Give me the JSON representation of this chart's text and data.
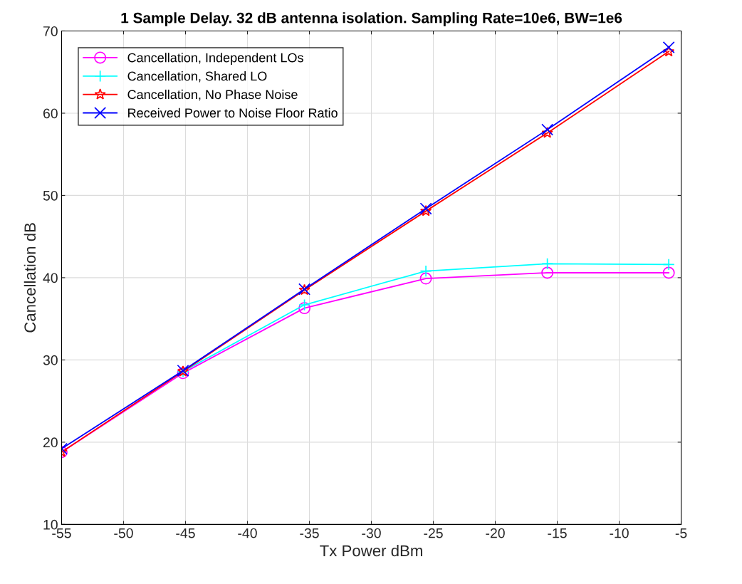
{
  "chart_data": {
    "type": "line",
    "title": "1 Sample Delay. 32 dB antenna isolation. Sampling Rate=10e6, BW=1e6",
    "xlabel": "Tx Power dBm",
    "ylabel": "Cancellation dB",
    "x": [
      -55,
      -45.2,
      -35.4,
      -25.6,
      -15.8,
      -6
    ],
    "series": [
      {
        "name": "Cancellation, Independent LOs",
        "color": "#ff00ff",
        "marker": "circle",
        "values": [
          18.8,
          28.4,
          36.3,
          39.9,
          40.6,
          40.6
        ]
      },
      {
        "name": "Cancellation, Shared LO",
        "color": "#00ffff",
        "marker": "plus",
        "values": [
          null,
          28.6,
          36.7,
          40.8,
          41.7,
          41.6
        ]
      },
      {
        "name": "Cancellation, No Phase Noise",
        "color": "#ff0000",
        "marker": "star",
        "values": [
          18.8,
          28.6,
          38.5,
          48.1,
          57.6,
          67.5
        ]
      },
      {
        "name": "Received Power to Noise Floor Ratio",
        "color": "#0000ff",
        "marker": "cross",
        "values": [
          19.2,
          28.7,
          38.6,
          48.4,
          58.0,
          68.0
        ]
      }
    ],
    "xlim": [
      -55,
      -5
    ],
    "xticks": [
      -55,
      -50,
      -45,
      -40,
      -35,
      -30,
      -25,
      -20,
      -15,
      -10,
      -5
    ],
    "ylim": [
      10,
      70
    ],
    "yticks": [
      10,
      20,
      30,
      40,
      50,
      60,
      70
    ],
    "grid": true,
    "legend": "top left",
    "line_style": "solid"
  }
}
